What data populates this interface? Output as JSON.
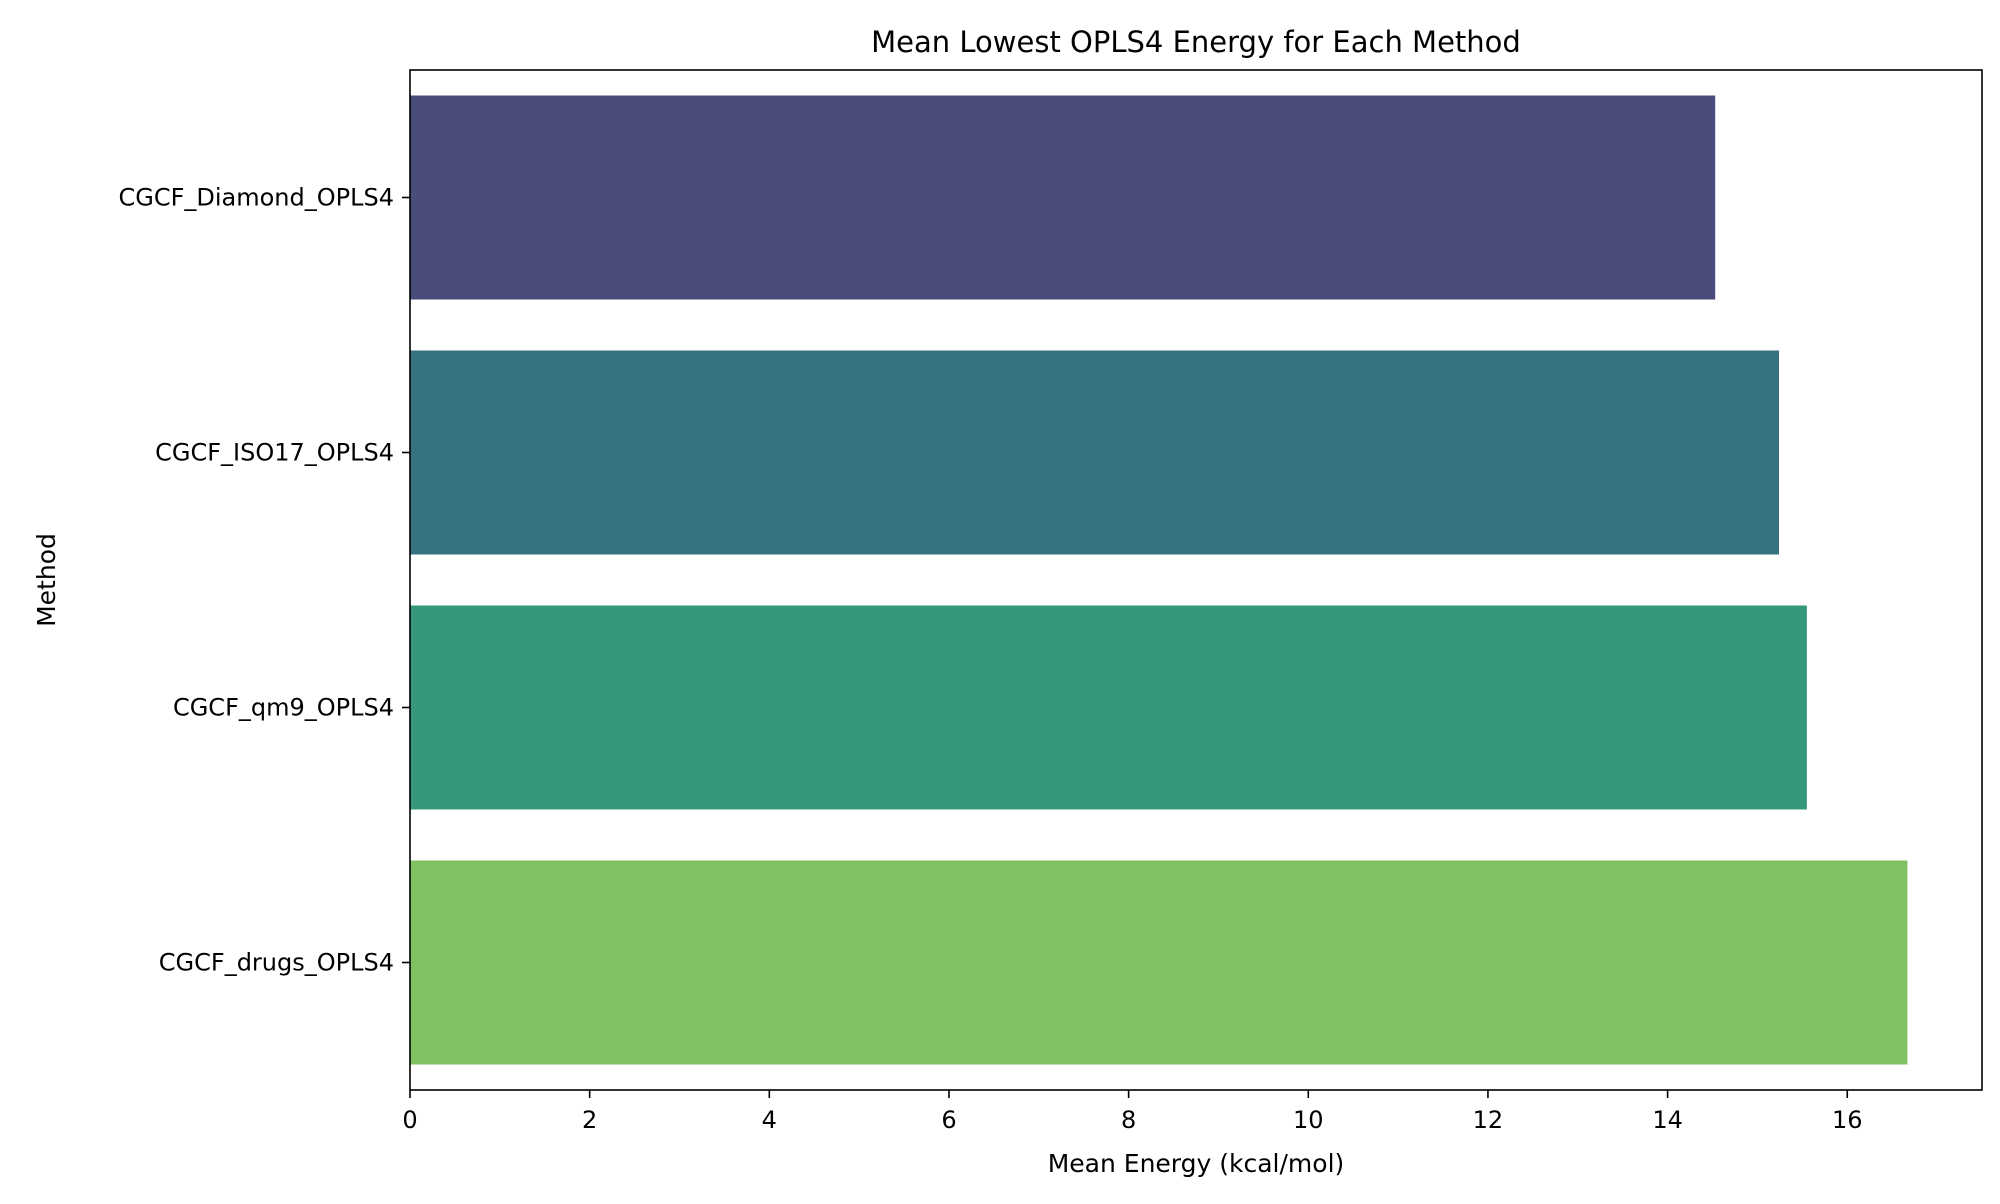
{
  "chart_data": {
    "type": "bar",
    "orientation": "horizontal",
    "title": "Mean Lowest OPLS4 Energy for Each Method",
    "xlabel": "Mean Energy (kcal/mol)",
    "ylabel": "Method",
    "categories": [
      "CGCF_Diamond_OPLS4",
      "CGCF_ISO17_OPLS4",
      "CGCF_qm9_OPLS4",
      "CGCF_drugs_OPLS4"
    ],
    "values": [
      14.53,
      15.24,
      15.55,
      16.67
    ],
    "colors": [
      "#4a4c7c",
      "#37727f",
      "#35987b",
      "#80c262"
    ],
    "xlim": [
      0,
      17.5
    ],
    "xticks": [
      0,
      2,
      4,
      6,
      8,
      10,
      12,
      14,
      16
    ],
    "grid": false,
    "legend": "none"
  }
}
